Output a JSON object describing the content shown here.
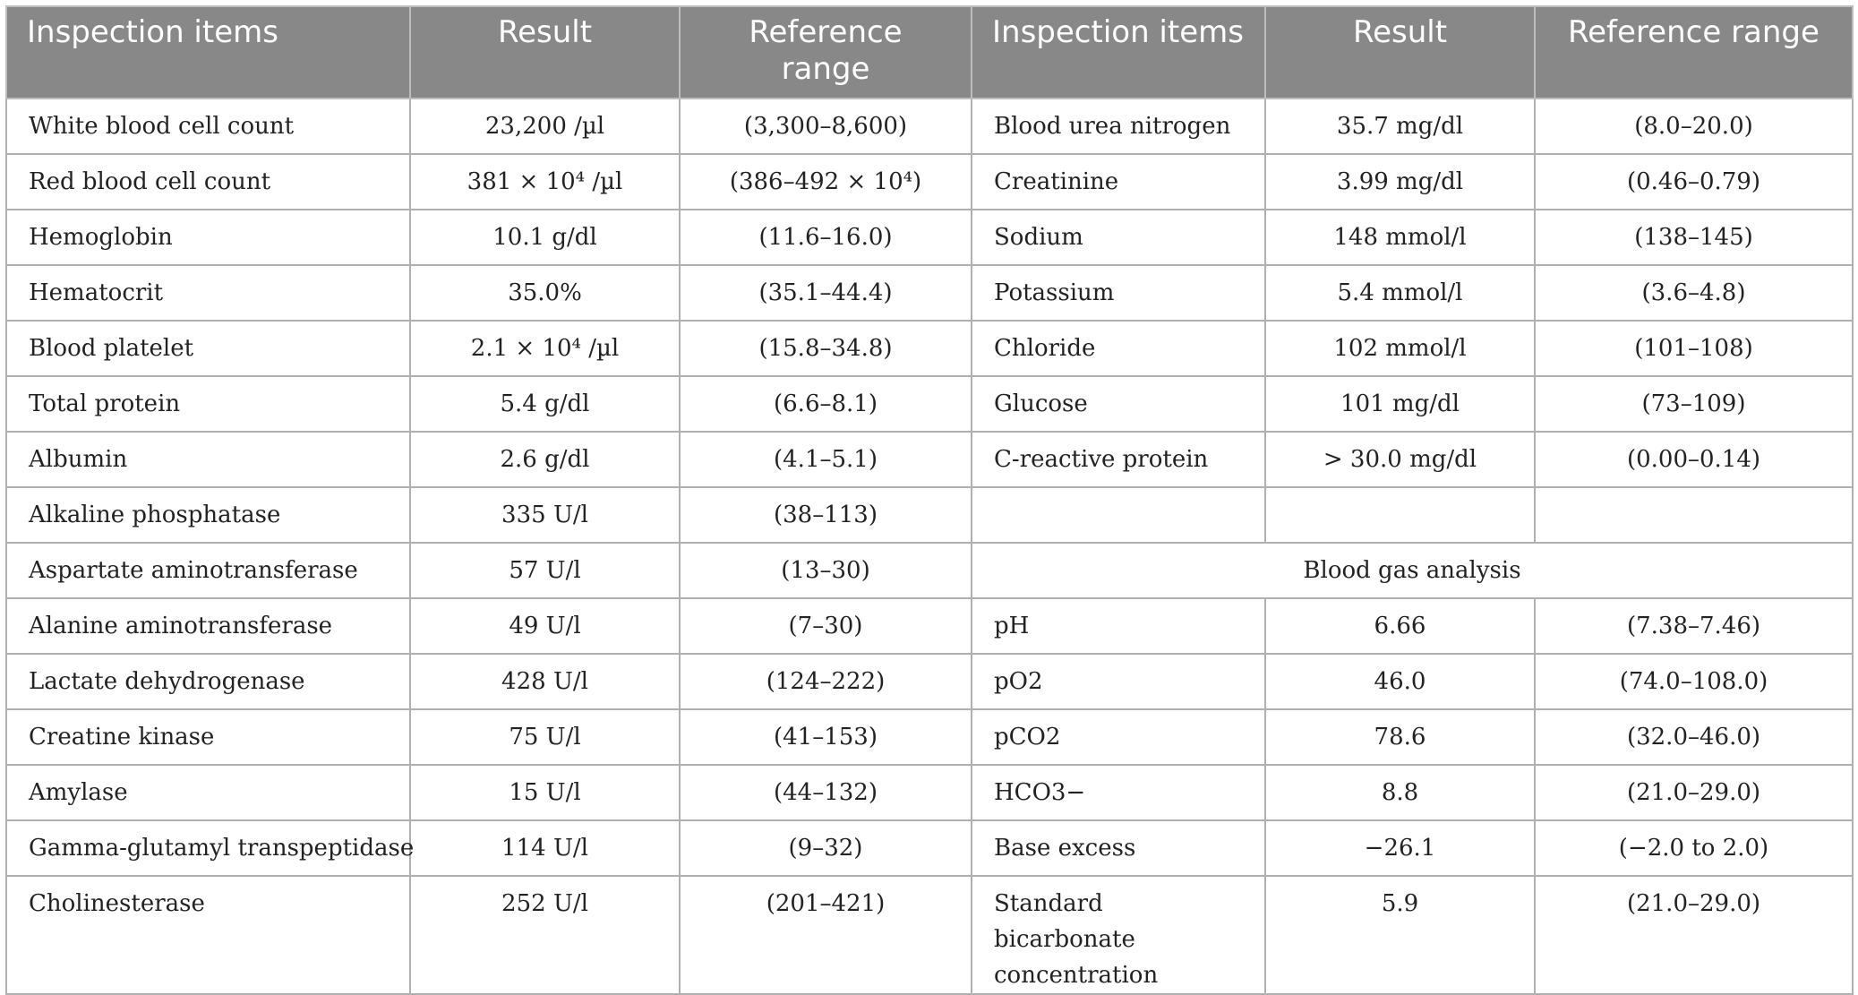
{
  "headers": [
    "Inspection items",
    "Result",
    "Reference range",
    "Inspection items",
    "Result",
    "Reference range"
  ],
  "left_rows": [
    [
      "White blood cell count",
      "23,200 /µl",
      "(3,300–8,600)"
    ],
    [
      "Red blood cell count",
      "381 × 10⁴ /µl",
      "(386–492 × 10⁴)"
    ],
    [
      "Hemoglobin",
      "10.1 g/dl",
      "(11.6–16.0)"
    ],
    [
      "Hematocrit",
      "35.0%",
      "(35.1–44.4)"
    ],
    [
      "Blood platelet",
      "2.1 × 10⁴ /µl",
      "(15.8–34.8)"
    ],
    [
      "Total protein",
      "5.4 g/dl",
      "(6.6–8.1)"
    ],
    [
      "Albumin",
      "2.6 g/dl",
      "(4.1–5.1)"
    ],
    [
      "Alkaline phosphatase",
      "335 U/l",
      "(38–113)"
    ],
    [
      "Aspartate aminotransferase",
      "57 U/l",
      "(13–30)"
    ],
    [
      "Alanine aminotransferase",
      "49 U/l",
      "(7–30)"
    ],
    [
      "Lactate dehydrogenase",
      "428 U/l",
      "(124–222)"
    ],
    [
      "Creatine kinase",
      "75 U/l",
      "(41–153)"
    ],
    [
      "Amylase",
      "15 U/l",
      "(44–132)"
    ],
    [
      "Gamma-glutamyl transpeptidase",
      "114 U/l",
      "(9–32)"
    ],
    [
      "Cholinesterase",
      "252 U/l",
      "(201–421)"
    ]
  ],
  "right_rows_chem": [
    [
      "Blood urea nitrogen",
      "35.7 mg/dl",
      "(8.0–20.0)"
    ],
    [
      "Creatinine",
      "3.99 mg/dl",
      "(0.46–0.79)"
    ],
    [
      "Sodium",
      "148 mmol/l",
      "(138–145)"
    ],
    [
      "Potassium",
      "5.4 mmol/l",
      "(3.6–4.8)"
    ],
    [
      "Chloride",
      "102 mmol/l",
      "(101–108)"
    ],
    [
      "Glucose",
      "101 mg/dl",
      "(73–109)"
    ],
    [
      "C-reactive protein",
      "> 30.0 mg/dl",
      "(0.00–0.14)"
    ],
    [
      "",
      "",
      ""
    ]
  ],
  "blood_gas_title": "Blood gas analysis",
  "right_rows_gas": [
    [
      "pH",
      "6.66",
      "(7.38–7.46)"
    ],
    [
      "pO2",
      "46.0",
      "(74.0–108.0)"
    ],
    [
      "pCO2",
      "78.6",
      "(32.0–46.0)"
    ],
    [
      "HCO3−",
      "8.8",
      "(21.0–29.0)"
    ],
    [
      "Base excess",
      "−26.1",
      "(−2.0 to 2.0)"
    ],
    [
      "Standard bicarbonate concentration",
      "5.9",
      "(21.0–29.0)"
    ]
  ]
}
